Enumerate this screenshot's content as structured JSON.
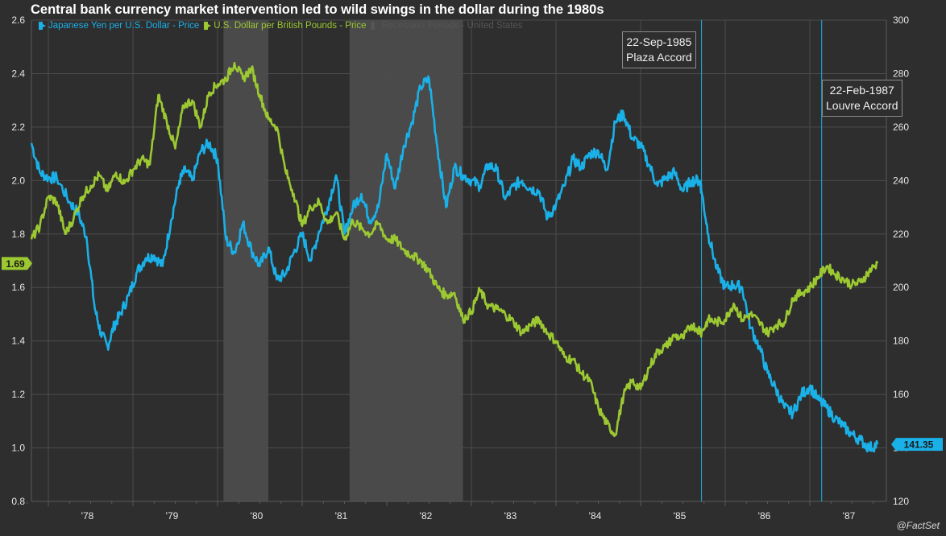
{
  "chart_data": {
    "type": "line",
    "title": "Central bank currency market intervention led to wild swings in the dollar during the 1980s",
    "source": "@FactSet",
    "x_axis": {
      "range": [
        1977.8,
        1987.85
      ],
      "tick_labels": [
        "'78",
        "'79",
        "'80",
        "'81",
        "'82",
        "'83",
        "'84",
        "'85",
        "'86",
        "'87"
      ],
      "tick_years": [
        1978.5,
        1979.5,
        1980.5,
        1981.5,
        1982.5,
        1983.5,
        1984.5,
        1985.5,
        1986.5,
        1987.5
      ]
    },
    "y_left": {
      "range": [
        0.8,
        2.6
      ],
      "tick_labels": [
        "0.8",
        "1.0",
        "1.2",
        "1.4",
        "1.6",
        "1.8",
        "2.0",
        "2.2",
        "2.4",
        "2.6"
      ],
      "ticks": [
        0.8,
        1.0,
        1.2,
        1.4,
        1.6,
        1.8,
        2.0,
        2.2,
        2.4,
        2.6
      ]
    },
    "y_right": {
      "range": [
        120,
        300
      ],
      "tick_labels": [
        "120",
        "140",
        "160",
        "180",
        "200",
        "220",
        "240",
        "260",
        "280",
        "300"
      ],
      "ticks": [
        120,
        140,
        160,
        180,
        200,
        220,
        240,
        260,
        280,
        300
      ]
    },
    "grid": true,
    "legend": {
      "placement": "top-left",
      "entries": [
        {
          "label": "Japanese Yen per U.S. Dollar - Price",
          "color": "#1ab0e8"
        },
        {
          "label": "U.S. Dollar per British Pounds - Price",
          "color": "#9cc832"
        },
        {
          "label": "Recession Periods - United States",
          "color": "#4a4a4a"
        }
      ]
    },
    "recessions": [
      {
        "start": 1980.07,
        "end": 1980.6
      },
      {
        "start": 1981.56,
        "end": 1982.9
      }
    ],
    "annotations": [
      {
        "date": "22-Sep-1985",
        "label": "Plaza Accord",
        "x": 1985.72,
        "color": "#1ab0e8"
      },
      {
        "date": "22-Feb-1987",
        "label": "Louvre Accord",
        "x": 1987.14,
        "color": "#1ab0e8"
      }
    ],
    "series": [
      {
        "name": "Japanese Yen per U.S. Dollar - Price",
        "axis": "right",
        "color": "#1ab0e8",
        "last_value": "141.35",
        "x": [
          1977.8,
          1977.9,
          1978.0,
          1978.1,
          1978.25,
          1978.35,
          1978.45,
          1978.55,
          1978.62,
          1978.7,
          1978.78,
          1978.85,
          1978.95,
          1979.05,
          1979.15,
          1979.25,
          1979.35,
          1979.45,
          1979.55,
          1979.62,
          1979.7,
          1979.8,
          1979.9,
          1980.0,
          1980.1,
          1980.2,
          1980.3,
          1980.4,
          1980.5,
          1980.6,
          1980.7,
          1980.8,
          1980.9,
          1981.0,
          1981.1,
          1981.2,
          1981.3,
          1981.4,
          1981.5,
          1981.6,
          1981.7,
          1981.8,
          1981.9,
          1982.0,
          1982.1,
          1982.2,
          1982.3,
          1982.4,
          1982.5,
          1982.6,
          1982.7,
          1982.8,
          1982.9,
          1983.0,
          1983.1,
          1983.2,
          1983.3,
          1983.4,
          1983.5,
          1983.6,
          1983.7,
          1983.8,
          1983.9,
          1984.0,
          1984.1,
          1984.2,
          1984.3,
          1984.4,
          1984.5,
          1984.6,
          1984.7,
          1984.8,
          1984.9,
          1985.0,
          1985.1,
          1985.2,
          1985.3,
          1985.4,
          1985.5,
          1985.6,
          1985.7,
          1985.72,
          1985.8,
          1985.9,
          1986.0,
          1986.1,
          1986.2,
          1986.3,
          1986.4,
          1986.5,
          1986.6,
          1986.7,
          1986.8,
          1986.9,
          1987.0,
          1987.1,
          1987.2,
          1987.3,
          1987.4,
          1987.5,
          1987.6,
          1987.7,
          1987.8
        ],
        "values": [
          254,
          243,
          241,
          241,
          232,
          228,
          219,
          192,
          183,
          178,
          186,
          190,
          197,
          206,
          211,
          212,
          208,
          225,
          240,
          244,
          240,
          251,
          254,
          248,
          218,
          213,
          224,
          214,
          208,
          215,
          203,
          205,
          213,
          220,
          210,
          221,
          230,
          242,
          220,
          230,
          235,
          225,
          230,
          250,
          237,
          253,
          262,
          275,
          278,
          252,
          230,
          245,
          242,
          240,
          238,
          246,
          244,
          233,
          238,
          240,
          237,
          236,
          226,
          231,
          238,
          248,
          245,
          250,
          251,
          244,
          262,
          265,
          256,
          253,
          246,
          238,
          241,
          243,
          236,
          240,
          240,
          236,
          220,
          207,
          200,
          201,
          200,
          185,
          178,
          168,
          162,
          155,
          153,
          160,
          163,
          158,
          155,
          151,
          148,
          145,
          143,
          140,
          141.35
        ]
      },
      {
        "name": "U.S. Dollar per British Pounds - Price",
        "axis": "left",
        "color": "#9cc832",
        "last_value": "1.69",
        "x": [
          1977.8,
          1977.9,
          1978.0,
          1978.1,
          1978.2,
          1978.3,
          1978.4,
          1978.5,
          1978.6,
          1978.7,
          1978.8,
          1978.9,
          1979.0,
          1979.1,
          1979.2,
          1979.3,
          1979.4,
          1979.5,
          1979.6,
          1979.7,
          1979.8,
          1979.9,
          1980.0,
          1980.1,
          1980.2,
          1980.3,
          1980.4,
          1980.5,
          1980.6,
          1980.7,
          1980.8,
          1980.9,
          1981.0,
          1981.1,
          1981.2,
          1981.3,
          1981.4,
          1981.5,
          1981.6,
          1981.7,
          1981.8,
          1981.9,
          1982.0,
          1982.1,
          1982.2,
          1982.3,
          1982.4,
          1982.5,
          1982.6,
          1982.7,
          1982.8,
          1982.9,
          1983.0,
          1983.1,
          1983.2,
          1983.3,
          1983.4,
          1983.5,
          1983.6,
          1983.7,
          1983.8,
          1983.9,
          1984.0,
          1984.1,
          1984.2,
          1984.3,
          1984.4,
          1984.5,
          1984.6,
          1984.7,
          1984.8,
          1984.9,
          1985.0,
          1985.1,
          1985.2,
          1985.3,
          1985.4,
          1985.5,
          1985.6,
          1985.7,
          1985.72,
          1985.8,
          1985.9,
          1986.0,
          1986.1,
          1986.2,
          1986.3,
          1986.4,
          1986.5,
          1986.6,
          1986.7,
          1986.8,
          1986.9,
          1987.0,
          1987.1,
          1987.2,
          1987.3,
          1987.4,
          1987.5,
          1987.6,
          1987.7,
          1987.8
        ],
        "values": [
          1.78,
          1.83,
          1.94,
          1.92,
          1.8,
          1.86,
          1.94,
          1.98,
          2.02,
          1.96,
          2.03,
          1.99,
          2.04,
          2.08,
          2.06,
          2.32,
          2.22,
          2.12,
          2.28,
          2.3,
          2.2,
          2.33,
          2.36,
          2.38,
          2.44,
          2.38,
          2.42,
          2.32,
          2.23,
          2.2,
          2.04,
          1.95,
          1.83,
          1.9,
          1.92,
          1.84,
          1.88,
          1.78,
          1.85,
          1.82,
          1.8,
          1.84,
          1.78,
          1.78,
          1.74,
          1.72,
          1.7,
          1.66,
          1.6,
          1.57,
          1.58,
          1.48,
          1.51,
          1.59,
          1.53,
          1.52,
          1.5,
          1.47,
          1.43,
          1.46,
          1.48,
          1.43,
          1.4,
          1.34,
          1.33,
          1.28,
          1.25,
          1.15,
          1.09,
          1.05,
          1.2,
          1.25,
          1.22,
          1.3,
          1.36,
          1.38,
          1.42,
          1.41,
          1.46,
          1.44,
          1.43,
          1.48,
          1.47,
          1.48,
          1.54,
          1.48,
          1.5,
          1.47,
          1.43,
          1.46,
          1.47,
          1.56,
          1.58,
          1.6,
          1.64,
          1.68,
          1.65,
          1.63,
          1.61,
          1.62,
          1.66,
          1.69
        ]
      }
    ]
  }
}
